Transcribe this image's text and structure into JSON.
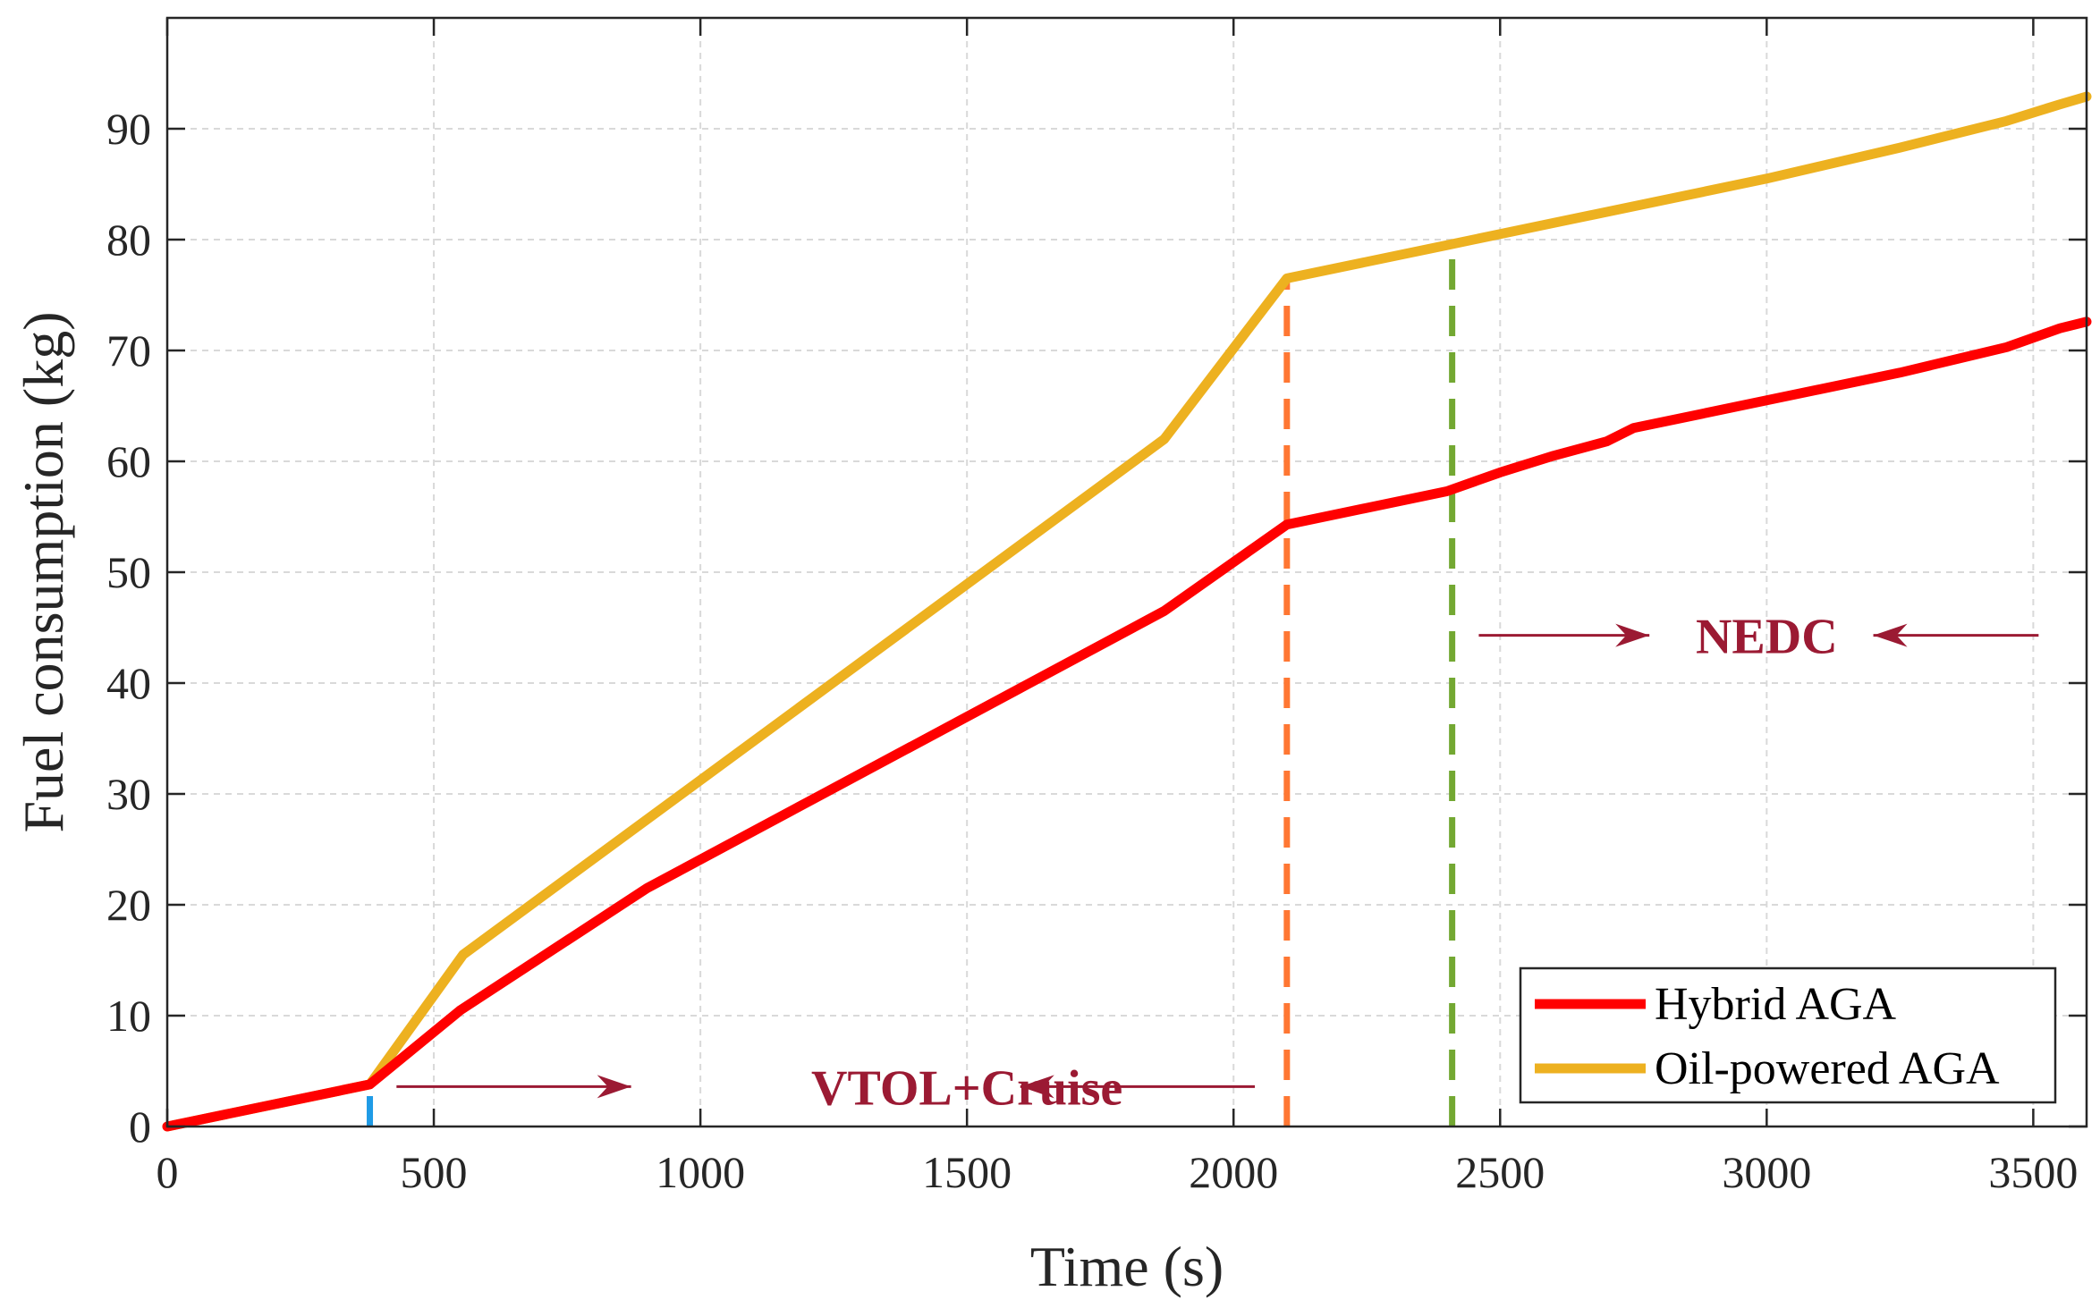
{
  "chart_data": {
    "type": "line",
    "title": "",
    "xlabel": "Time (s)",
    "ylabel": "Fuel consumption (kg)",
    "xlim": [
      0,
      3600
    ],
    "ylim": [
      0,
      100
    ],
    "xticks": [
      0,
      500,
      1000,
      1500,
      2000,
      2500,
      3000,
      3500
    ],
    "yticks": [
      0,
      10,
      20,
      30,
      40,
      50,
      60,
      70,
      80,
      90
    ],
    "grid": true,
    "legend_position": "bottom-right",
    "series": [
      {
        "name": "Hybrid AGA",
        "color": "#ff0000",
        "x": [
          0,
          380,
          550,
          900,
          1870,
          2100,
          2400,
          2500,
          2600,
          2700,
          2750,
          3000,
          3250,
          3450,
          3550,
          3600
        ],
        "y": [
          0,
          3.8,
          10.5,
          21.5,
          46.5,
          54.3,
          57.3,
          59,
          60.5,
          61.8,
          63,
          65.5,
          68,
          70.3,
          72,
          72.6
        ]
      },
      {
        "name": "Oil-powered AGA",
        "color": "#edb120",
        "x": [
          0,
          380,
          555,
          1870,
          2100,
          2400,
          2600,
          3000,
          3250,
          3450,
          3550,
          3600
        ],
        "y": [
          0,
          3.8,
          15.5,
          62,
          76.5,
          79.5,
          81.5,
          85.5,
          88.3,
          90.7,
          92.2,
          92.9
        ]
      }
    ],
    "vlines": [
      {
        "x": 380,
        "ymin": 0,
        "ymax": 3.8,
        "color": "#1f9be6"
      },
      {
        "x": 2100,
        "ymin": 0,
        "ymax": 76.5,
        "color": "#ff7733"
      },
      {
        "x": 2410,
        "ymin": 0,
        "ymax": 79.5,
        "color": "#73a832"
      }
    ],
    "annotations": [
      {
        "text": "VTOL+Cruise",
        "x": 1500,
        "y": 3.6,
        "color": "#9b1a33",
        "arrow_left": [
          430,
          870
        ],
        "arrow_right": [
          2040,
          1600
        ]
      },
      {
        "text": "NEDC",
        "x": 3000,
        "y": 44.3,
        "color": "#9b1a33",
        "arrow_left": [
          2460,
          2780
        ],
        "arrow_right": [
          3510,
          3200
        ]
      }
    ]
  }
}
